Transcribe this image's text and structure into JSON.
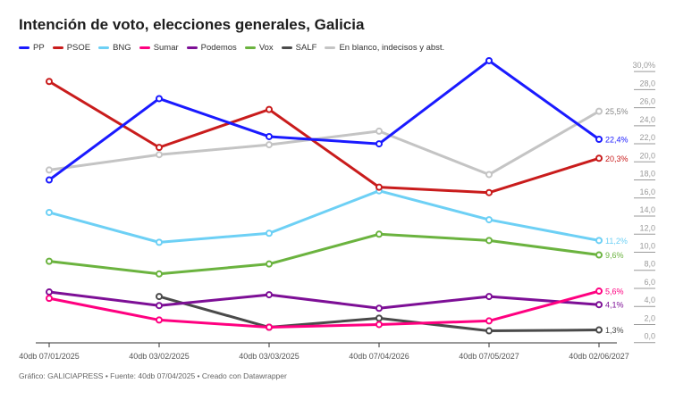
{
  "title": "Intención de voto, elecciones generales, Galicia",
  "footer": "Gráfico: GALICIAPRESS • Fuente: 40db 07/04/2025 • Creado con Datawrapper",
  "chart_data": {
    "type": "line",
    "title": "Intención de voto, elecciones generales, Galicia",
    "x": [
      "40db 07/01/2025",
      "40db 03/02/2025",
      "40db 03/03/2025",
      "40db 07/04/2026",
      "40db 07/05/2027",
      "40db 02/06/2027"
    ],
    "ylim": [
      0,
      30
    ],
    "yticks": [
      "30,0%",
      "28,0",
      "26,0",
      "24,0",
      "22,0",
      "20,0",
      "18,0",
      "16,0",
      "14,0",
      "12,0",
      "10,0",
      "8,0",
      "6,0",
      "4,0",
      "2,0",
      "0,0"
    ],
    "grid": false,
    "legend_position": "top-left",
    "series": [
      {
        "name": "PP",
        "color": "#1a1aff",
        "values": [
          17.9,
          26.9,
          22.7,
          21.9,
          31.1,
          22.4
        ],
        "end_label": "22,4%"
      },
      {
        "name": "PSOE",
        "color": "#c91c1c",
        "values": [
          28.8,
          21.5,
          25.7,
          17.1,
          16.5,
          20.3
        ],
        "end_label": "20,3%"
      },
      {
        "name": "BNG",
        "color": "#6dd0f5",
        "values": [
          14.3,
          11.0,
          12.0,
          16.7,
          13.5,
          11.2
        ],
        "end_label": "11,2%"
      },
      {
        "name": "Sumar",
        "color": "#ff0080",
        "values": [
          4.8,
          2.4,
          1.6,
          1.9,
          2.3,
          5.6
        ],
        "end_label": "5,6%"
      },
      {
        "name": "Podemos",
        "color": "#7d0f96",
        "values": [
          5.5,
          4.0,
          5.2,
          3.7,
          5.0,
          4.1
        ],
        "end_label": "4,1%"
      },
      {
        "name": "Vox",
        "color": "#6bb33f",
        "values": [
          8.9,
          7.5,
          8.6,
          11.9,
          11.2,
          9.6
        ],
        "end_label": "9,6%"
      },
      {
        "name": "SALF",
        "color": "#4a4a4a",
        "values": [
          null,
          5.0,
          1.6,
          2.6,
          1.2,
          1.3
        ],
        "end_label": "1,3%"
      },
      {
        "name": "En blanco, indecisos y abst.",
        "color": "#c4c4c4",
        "values": [
          19.0,
          20.7,
          21.8,
          23.3,
          18.5,
          25.5
        ],
        "end_label": "25,5%"
      }
    ]
  }
}
